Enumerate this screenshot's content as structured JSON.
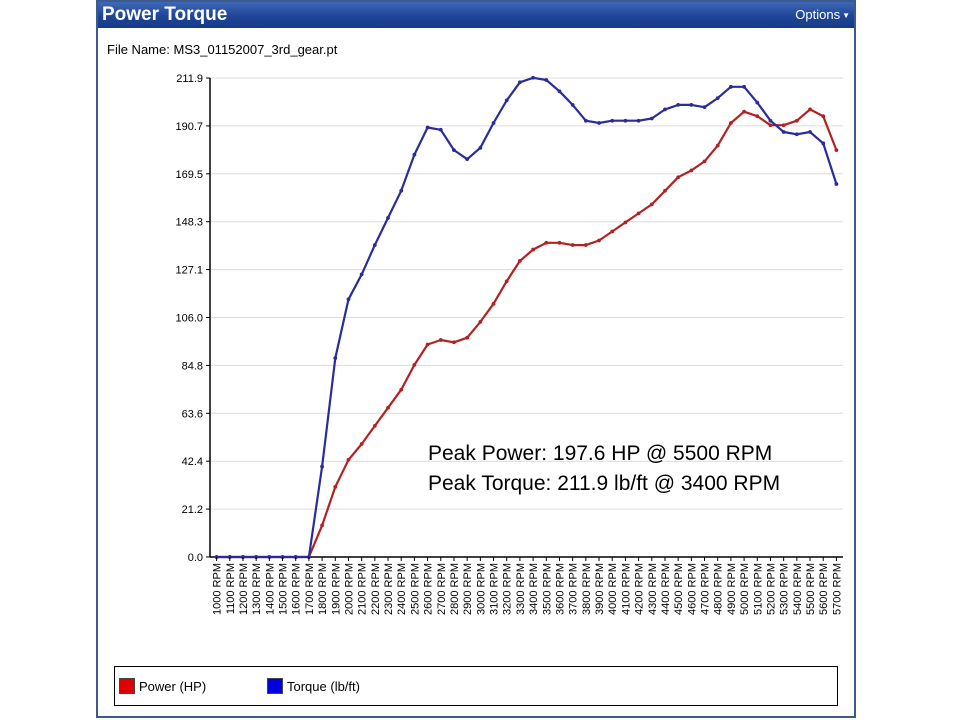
{
  "window": {
    "title": "Power Torque",
    "options_label": "Options",
    "options_caret": "▼"
  },
  "file": {
    "label": "File Name:",
    "name": "MS3_01152007_3rd_gear.pt"
  },
  "annotations": {
    "peak_power": "Peak Power: 197.6 HP @ 5500 RPM",
    "peak_torque": "Peak Torque: 211.9 lb/ft @ 3400 RPM"
  },
  "chart_data": {
    "type": "line",
    "title": "",
    "xlabel": "",
    "ylabel": "",
    "ylim": [
      0,
      211.9
    ],
    "yticks": [
      "0.0",
      "21.2",
      "42.4",
      "63.6",
      "84.8",
      "106.0",
      "127.1",
      "148.3",
      "169.5",
      "190.7",
      "211.9"
    ],
    "grid": "horizontal",
    "legend_position": "bottom",
    "x": [
      "1000 RPM",
      "1100 RPM",
      "1200 RPM",
      "1300 RPM",
      "1400 RPM",
      "1500 RPM",
      "1600 RPM",
      "1700 RPM",
      "1800 RPM",
      "1900 RPM",
      "2000 RPM",
      "2100 RPM",
      "2200 RPM",
      "2300 RPM",
      "2400 RPM",
      "2500 RPM",
      "2600 RPM",
      "2700 RPM",
      "2800 RPM",
      "2900 RPM",
      "3000 RPM",
      "3100 RPM",
      "3200 RPM",
      "3300 RPM",
      "3400 RPM",
      "3500 RPM",
      "3600 RPM",
      "3700 RPM",
      "3800 RPM",
      "3900 RPM",
      "4000 RPM",
      "4100 RPM",
      "4200 RPM",
      "4300 RPM",
      "4400 RPM",
      "4500 RPM",
      "4600 RPM",
      "4700 RPM",
      "4800 RPM",
      "4900 RPM",
      "5000 RPM",
      "5100 RPM",
      "5200 RPM",
      "5300 RPM",
      "5400 RPM",
      "5500 RPM",
      "5600 RPM",
      "5700 RPM"
    ],
    "series": [
      {
        "name": "Power (HP)",
        "color": "#b22222",
        "swatch": "#e00000",
        "values": [
          0,
          0,
          0,
          0,
          0,
          0,
          0,
          0,
          14,
          31,
          43,
          50,
          58,
          66,
          74,
          85,
          94,
          96,
          95,
          97,
          104,
          112,
          122,
          131,
          136,
          139,
          139,
          138,
          138,
          140,
          144,
          148,
          152,
          156,
          162,
          168,
          171,
          175,
          182,
          192,
          197,
          195,
          191,
          191,
          193,
          198,
          195,
          180
        ]
      },
      {
        "name": "Torque (lb/ft)",
        "color": "#2b2b9c",
        "swatch": "#0000e0",
        "values": [
          0,
          0,
          0,
          0,
          0,
          0,
          0,
          0,
          40,
          88,
          114,
          125,
          138,
          150,
          162,
          178,
          190,
          189,
          180,
          176,
          181,
          192,
          202,
          210,
          212,
          211,
          206,
          200,
          193,
          192,
          193,
          193,
          193,
          194,
          198,
          200,
          200,
          199,
          203,
          208,
          208,
          201,
          193,
          188,
          187,
          188,
          183,
          165
        ]
      }
    ]
  }
}
